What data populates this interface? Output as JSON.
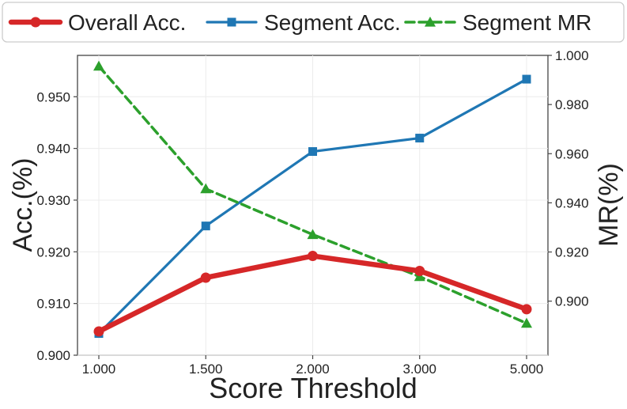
{
  "chart_data": {
    "type": "line",
    "title": "",
    "xlabel": "Score Threshold",
    "ylabel_left": "Acc.(%)",
    "ylabel_right": "MR(%)",
    "categories": [
      "1.000",
      "1.500",
      "2.000",
      "3.000",
      "5.000"
    ],
    "ylim_left": [
      0.9,
      0.958
    ],
    "yticks_left": [
      "0.900",
      "0.910",
      "0.920",
      "0.930",
      "0.940",
      "0.950"
    ],
    "ylim_right": [
      0.878,
      1.0
    ],
    "yticks_right": [
      "0.900",
      "0.920",
      "0.940",
      "0.960",
      "0.980",
      "1.000"
    ],
    "grid": true,
    "legend_position": "top",
    "series": [
      {
        "name": "Overall Acc.",
        "axis": "left",
        "color": "#d62728",
        "marker": "circle",
        "style": "solid-thick",
        "values": [
          0.9046,
          0.915,
          0.9192,
          0.9163,
          0.9089
        ]
      },
      {
        "name": "Segment Acc.",
        "axis": "left",
        "color": "#1f77b4",
        "marker": "square",
        "style": "solid",
        "values": [
          0.9042,
          0.925,
          0.9394,
          0.942,
          0.9534
        ]
      },
      {
        "name": "Segment MR",
        "axis": "right",
        "color": "#2ca02c",
        "marker": "triangle",
        "style": "dashed",
        "values": [
          0.9956,
          0.9457,
          0.9271,
          0.91,
          0.891
        ]
      }
    ]
  }
}
